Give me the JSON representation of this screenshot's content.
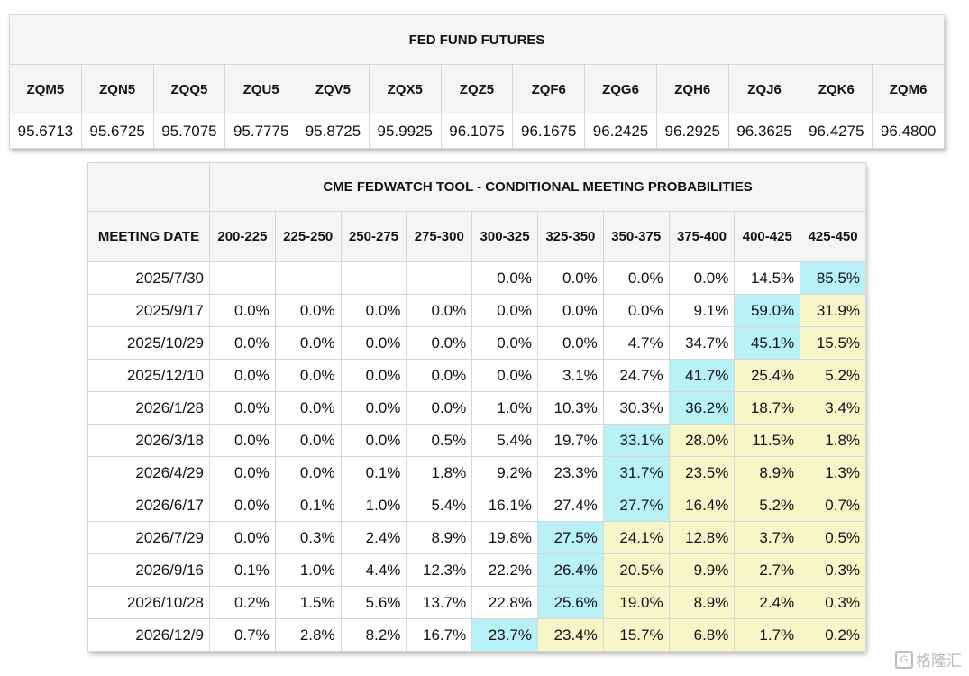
{
  "futures": {
    "title": "FED FUND FUTURES",
    "contracts": [
      {
        "symbol": "ZQM5",
        "price": "95.6713"
      },
      {
        "symbol": "ZQN5",
        "price": "95.6725"
      },
      {
        "symbol": "ZQQ5",
        "price": "95.7075"
      },
      {
        "symbol": "ZQU5",
        "price": "95.7775"
      },
      {
        "symbol": "ZQV5",
        "price": "95.8725"
      },
      {
        "symbol": "ZQX5",
        "price": "95.9925"
      },
      {
        "symbol": "ZQZ5",
        "price": "96.1075"
      },
      {
        "symbol": "ZQF6",
        "price": "96.1675"
      },
      {
        "symbol": "ZQG6",
        "price": "96.2425"
      },
      {
        "symbol": "ZQH6",
        "price": "96.2925"
      },
      {
        "symbol": "ZQJ6",
        "price": "96.3625"
      },
      {
        "symbol": "ZQK6",
        "price": "96.4275"
      },
      {
        "symbol": "ZQM6",
        "price": "96.4800"
      }
    ]
  },
  "fedwatch": {
    "title": "CME FEDWATCH TOOL - CONDITIONAL MEETING PROBABILITIES",
    "date_header": "MEETING DATE",
    "ranges": [
      "200-225",
      "225-250",
      "250-275",
      "275-300",
      "300-325",
      "325-350",
      "350-375",
      "375-400",
      "400-425",
      "425-450"
    ],
    "rows": [
      {
        "date": "2025/7/30",
        "probs": [
          "",
          "",
          "",
          "",
          "0.0%",
          "0.0%",
          "0.0%",
          "0.0%",
          "14.5%",
          "85.5%"
        ],
        "hi": 9
      },
      {
        "date": "2025/9/17",
        "probs": [
          "0.0%",
          "0.0%",
          "0.0%",
          "0.0%",
          "0.0%",
          "0.0%",
          "0.0%",
          "9.1%",
          "59.0%",
          "31.9%"
        ],
        "hi": 8
      },
      {
        "date": "2025/10/29",
        "probs": [
          "0.0%",
          "0.0%",
          "0.0%",
          "0.0%",
          "0.0%",
          "0.0%",
          "4.7%",
          "34.7%",
          "45.1%",
          "15.5%"
        ],
        "hi": 8
      },
      {
        "date": "2025/12/10",
        "probs": [
          "0.0%",
          "0.0%",
          "0.0%",
          "0.0%",
          "0.0%",
          "3.1%",
          "24.7%",
          "41.7%",
          "25.4%",
          "5.2%"
        ],
        "hi": 7
      },
      {
        "date": "2026/1/28",
        "probs": [
          "0.0%",
          "0.0%",
          "0.0%",
          "0.0%",
          "1.0%",
          "10.3%",
          "30.3%",
          "36.2%",
          "18.7%",
          "3.4%"
        ],
        "hi": 7
      },
      {
        "date": "2026/3/18",
        "probs": [
          "0.0%",
          "0.0%",
          "0.0%",
          "0.5%",
          "5.4%",
          "19.7%",
          "33.1%",
          "28.0%",
          "11.5%",
          "1.8%"
        ],
        "hi": 6
      },
      {
        "date": "2026/4/29",
        "probs": [
          "0.0%",
          "0.0%",
          "0.1%",
          "1.8%",
          "9.2%",
          "23.3%",
          "31.7%",
          "23.5%",
          "8.9%",
          "1.3%"
        ],
        "hi": 6
      },
      {
        "date": "2026/6/17",
        "probs": [
          "0.0%",
          "0.1%",
          "1.0%",
          "5.4%",
          "16.1%",
          "27.4%",
          "27.7%",
          "16.4%",
          "5.2%",
          "0.7%"
        ],
        "hi": 6
      },
      {
        "date": "2026/7/29",
        "probs": [
          "0.0%",
          "0.3%",
          "2.4%",
          "8.9%",
          "19.8%",
          "27.5%",
          "24.1%",
          "12.8%",
          "3.7%",
          "0.5%"
        ],
        "hi": 5
      },
      {
        "date": "2026/9/16",
        "probs": [
          "0.1%",
          "1.0%",
          "4.4%",
          "12.3%",
          "22.2%",
          "26.4%",
          "20.5%",
          "9.9%",
          "2.7%",
          "0.3%"
        ],
        "hi": 5
      },
      {
        "date": "2026/10/28",
        "probs": [
          "0.2%",
          "1.5%",
          "5.6%",
          "13.7%",
          "22.8%",
          "25.6%",
          "19.0%",
          "8.9%",
          "2.4%",
          "0.3%"
        ],
        "hi": 5
      },
      {
        "date": "2026/12/9",
        "probs": [
          "0.7%",
          "2.8%",
          "8.2%",
          "16.7%",
          "23.7%",
          "23.4%",
          "15.7%",
          "6.8%",
          "1.7%",
          "0.2%"
        ],
        "hi": 4
      }
    ],
    "colors": {
      "highlight": "#b9f2f6",
      "shade": "#f6f6c9"
    }
  },
  "watermark": {
    "text": "格隆汇",
    "icon": "gelonghui-logo-icon"
  }
}
